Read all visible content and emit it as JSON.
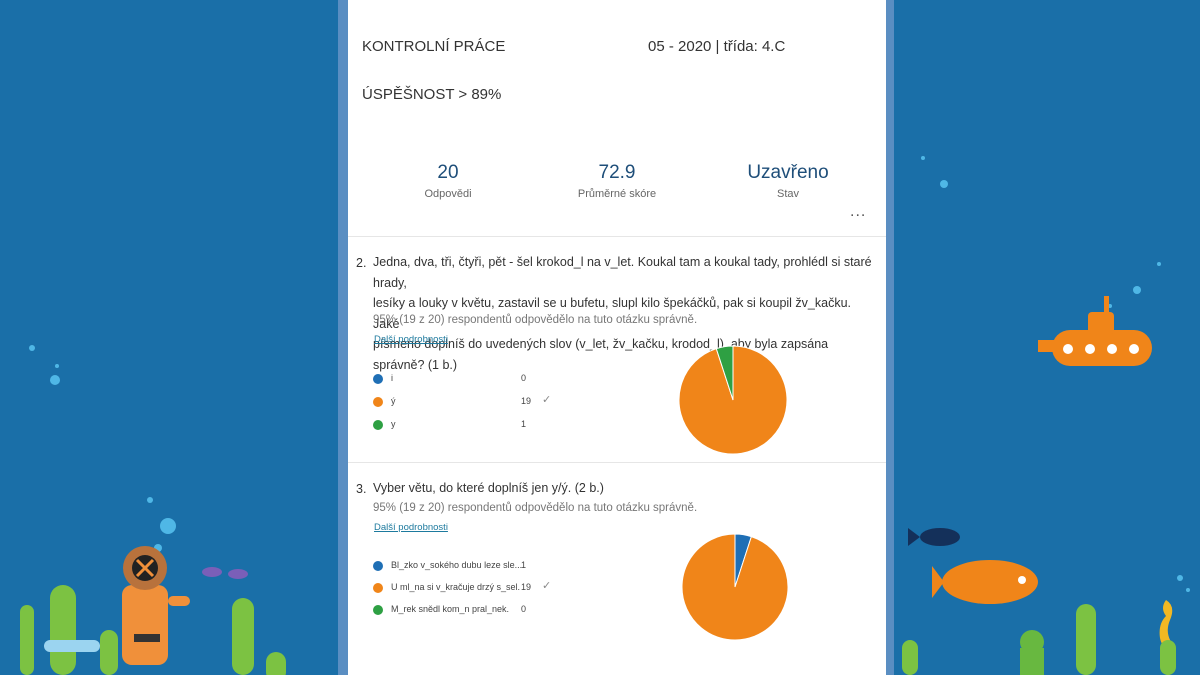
{
  "header": {
    "title": "KONTROLNÍ PRÁCE",
    "date_class": "05 - 2020 | třída: 4.C",
    "success_rate": "ÚSPĚŠNOST > 89%"
  },
  "stats": [
    {
      "value": "20",
      "label": "Odpovědi"
    },
    {
      "value": "72.9",
      "label": "Průměrné skóre"
    },
    {
      "value": "Uzavřeno",
      "label": "Stav"
    }
  ],
  "more_menu": "...",
  "questions": [
    {
      "number": "2.",
      "lines": [
        "Jedna, dva, tři, čtyři, pět - šel krokod_l na v_let. Koukal tam a koukal tady, prohlédl si staré hrady,",
        "lesíky a louky v květu, zastavil se u bufetu, slupl kilo špekáčků, pak si koupil žv_kačku. Jaké",
        "písmeno doplníš do uvedených slov (v_let, žv_kačku, krodod_l), aby byla zapsána správně? (1 b.)"
      ],
      "summary": "95% (19 z 20) respondentů odpovědělo na tuto otázku správně.",
      "details_link": "Další podrobnosti",
      "options": [
        {
          "label": "i",
          "count": "0",
          "value": 0,
          "color": "#1f6fb5",
          "correct": false
        },
        {
          "label": "ý",
          "count": "19",
          "value": 19,
          "color": "#f08519",
          "correct": true
        },
        {
          "label": "y",
          "count": "1",
          "value": 1,
          "color": "#2ea043",
          "correct": false
        }
      ]
    },
    {
      "number": "3.",
      "lines": [
        "Vyber větu, do které doplníš jen y/ý. (2 b.)"
      ],
      "summary": "95% (19 z 20) respondentů odpovědělo na tuto otázku správně.",
      "details_link": "Další podrobnosti",
      "options": [
        {
          "label": "Bl_zko v_sokého dubu leze sle...",
          "count": "1",
          "value": 1,
          "color": "#1f6fb5",
          "correct": false
        },
        {
          "label": "U ml_na si v_kračuje drzý s_sel.",
          "count": "19",
          "value": 19,
          "color": "#f08519",
          "correct": true
        },
        {
          "label": "M_rek snědl kom_n pral_nek.",
          "count": "0",
          "value": 0,
          "color": "#2ea043",
          "correct": false
        }
      ]
    }
  ],
  "chart_data": [
    {
      "type": "pie",
      "categories": [
        "i",
        "ý",
        "y"
      ],
      "values": [
        0,
        19,
        1
      ],
      "colors": [
        "#1f6fb5",
        "#f08519",
        "#2ea043"
      ]
    },
    {
      "type": "pie",
      "categories": [
        "Bl_zko v_sokého dubu leze sle...",
        "U ml_na si v_kračuje drzý s_sel.",
        "M_rek snědl kom_n pral_nek."
      ],
      "values": [
        1,
        19,
        0
      ],
      "colors": [
        "#1f6fb5",
        "#f08519",
        "#2ea043"
      ]
    }
  ],
  "colors": {
    "background": "#1a6fa8",
    "frame": "#5a8ec2",
    "stat_value": "#1e4e79",
    "link": "#1d7a9e"
  },
  "icons": {
    "check": "✓"
  }
}
